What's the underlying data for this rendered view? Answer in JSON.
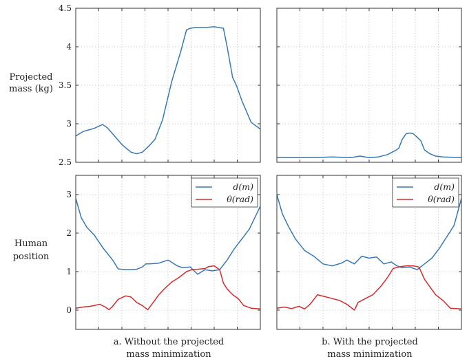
{
  "ylabels": {
    "top_line1": "Projected",
    "top_line2": "mass (kg)",
    "bottom_line1": "Human",
    "bottom_line2": "position"
  },
  "captions": {
    "a_line1": "a. Without the projected",
    "a_line2": "mass minimization",
    "b_line1": "b. With the projected",
    "b_line2": "mass minimization"
  },
  "colors": {
    "d": "#3778b4",
    "theta": "#d62a2a"
  },
  "chart_data": [
    {
      "type": "line",
      "panel": "top-left",
      "ylabel": "Projected mass (kg)",
      "ylim": [
        2.5,
        4.5
      ],
      "yticks": [
        2.5,
        3,
        3.5,
        4,
        4.5
      ],
      "ytick_labels": [
        "2.5",
        "3",
        "3.5",
        "4",
        "4.5"
      ],
      "xlim": [
        0,
        1
      ],
      "grid": true,
      "series": [
        {
          "color": "#3778b4",
          "x": [
            0,
            0.04,
            0.1,
            0.145,
            0.17,
            0.2,
            0.25,
            0.3,
            0.33,
            0.36,
            0.4,
            0.43,
            0.47,
            0.52,
            0.57,
            0.6,
            0.62,
            0.65,
            0.7,
            0.75,
            0.8,
            0.82,
            0.85,
            0.87,
            0.9,
            0.95,
            1
          ],
          "y": [
            2.84,
            2.9,
            2.94,
            2.99,
            2.95,
            2.87,
            2.73,
            2.63,
            2.61,
            2.63,
            2.72,
            2.8,
            3.05,
            3.55,
            3.95,
            4.22,
            4.24,
            4.25,
            4.25,
            4.26,
            4.24,
            4.0,
            3.6,
            3.5,
            3.3,
            3.02,
            2.93
          ]
        }
      ]
    },
    {
      "type": "line",
      "panel": "top-right",
      "ylim": [
        2.5,
        4.5
      ],
      "xlim": [
        0,
        1
      ],
      "grid": true,
      "series": [
        {
          "color": "#3778b4",
          "x": [
            0,
            0.2,
            0.3,
            0.4,
            0.45,
            0.5,
            0.55,
            0.6,
            0.64,
            0.66,
            0.68,
            0.7,
            0.72,
            0.74,
            0.78,
            0.8,
            0.83,
            0.86,
            0.9,
            1
          ],
          "y": [
            2.56,
            2.56,
            2.57,
            2.56,
            2.58,
            2.56,
            2.57,
            2.6,
            2.65,
            2.68,
            2.8,
            2.87,
            2.88,
            2.87,
            2.78,
            2.66,
            2.61,
            2.58,
            2.57,
            2.56
          ]
        }
      ]
    },
    {
      "type": "line",
      "panel": "bottom-left",
      "ylabel": "Human position",
      "ylim": [
        -0.5,
        3.5
      ],
      "yticks": [
        0,
        1,
        2,
        3
      ],
      "ytick_labels": [
        "0",
        "1",
        "2",
        "3"
      ],
      "xlim": [
        0,
        1
      ],
      "grid": true,
      "legend": "top-right",
      "series": [
        {
          "name": "d(m)",
          "color": "#3778b4",
          "x": [
            0,
            0.03,
            0.06,
            0.1,
            0.15,
            0.2,
            0.23,
            0.28,
            0.33,
            0.36,
            0.38,
            0.4,
            0.45,
            0.5,
            0.55,
            0.58,
            0.62,
            0.66,
            0.7,
            0.74,
            0.78,
            0.82,
            0.86,
            0.9,
            0.94,
            0.97,
            1
          ],
          "y": [
            2.9,
            2.4,
            2.15,
            1.95,
            1.6,
            1.3,
            1.07,
            1.05,
            1.06,
            1.12,
            1.2,
            1.2,
            1.22,
            1.3,
            1.15,
            1.1,
            1.12,
            0.93,
            1.05,
            1.02,
            1.05,
            1.3,
            1.6,
            1.85,
            2.1,
            2.4,
            2.7
          ]
        },
        {
          "name": "θ(rad)",
          "color": "#d62a2a",
          "x": [
            0,
            0.04,
            0.08,
            0.13,
            0.16,
            0.18,
            0.2,
            0.23,
            0.27,
            0.3,
            0.33,
            0.36,
            0.39,
            0.42,
            0.45,
            0.48,
            0.52,
            0.56,
            0.6,
            0.63,
            0.66,
            0.7,
            0.72,
            0.75,
            0.78,
            0.8,
            0.82,
            0.85,
            0.88,
            0.91,
            0.95,
            1
          ],
          "y": [
            0.05,
            0.08,
            0.1,
            0.15,
            0.08,
            0.01,
            0.1,
            0.28,
            0.37,
            0.34,
            0.2,
            0.12,
            0.01,
            0.2,
            0.4,
            0.55,
            0.73,
            0.85,
            1.0,
            1.05,
            1.06,
            1.08,
            1.13,
            1.15,
            1.05,
            0.7,
            0.55,
            0.4,
            0.3,
            0.12,
            0.05,
            0.03
          ]
        }
      ]
    },
    {
      "type": "line",
      "panel": "bottom-right",
      "ylim": [
        -0.5,
        3.5
      ],
      "xlim": [
        0,
        1
      ],
      "grid": true,
      "legend": "top-right",
      "series": [
        {
          "name": "d(m)",
          "color": "#3778b4",
          "x": [
            0,
            0.03,
            0.06,
            0.1,
            0.15,
            0.2,
            0.25,
            0.3,
            0.35,
            0.38,
            0.42,
            0.46,
            0.5,
            0.54,
            0.58,
            0.62,
            0.65,
            0.68,
            0.72,
            0.76,
            0.8,
            0.84,
            0.88,
            0.92,
            0.96,
            1
          ],
          "y": [
            3.0,
            2.5,
            2.2,
            1.85,
            1.55,
            1.4,
            1.2,
            1.15,
            1.22,
            1.3,
            1.2,
            1.4,
            1.35,
            1.38,
            1.2,
            1.25,
            1.15,
            1.1,
            1.12,
            1.05,
            1.2,
            1.35,
            1.6,
            1.9,
            2.2,
            2.9
          ]
        },
        {
          "name": "θ(rad)",
          "color": "#d62a2a",
          "x": [
            0,
            0.04,
            0.08,
            0.12,
            0.15,
            0.18,
            0.22,
            0.26,
            0.3,
            0.34,
            0.38,
            0.42,
            0.44,
            0.48,
            0.52,
            0.56,
            0.6,
            0.63,
            0.66,
            0.7,
            0.74,
            0.77,
            0.8,
            0.83,
            0.86,
            0.9,
            0.94,
            1
          ],
          "y": [
            0.05,
            0.08,
            0.04,
            0.1,
            0.03,
            0.15,
            0.4,
            0.35,
            0.3,
            0.25,
            0.15,
            0.0,
            0.2,
            0.3,
            0.4,
            0.6,
            0.85,
            1.08,
            1.12,
            1.15,
            1.15,
            1.12,
            0.8,
            0.6,
            0.4,
            0.25,
            0.05,
            0.03
          ]
        }
      ]
    }
  ]
}
